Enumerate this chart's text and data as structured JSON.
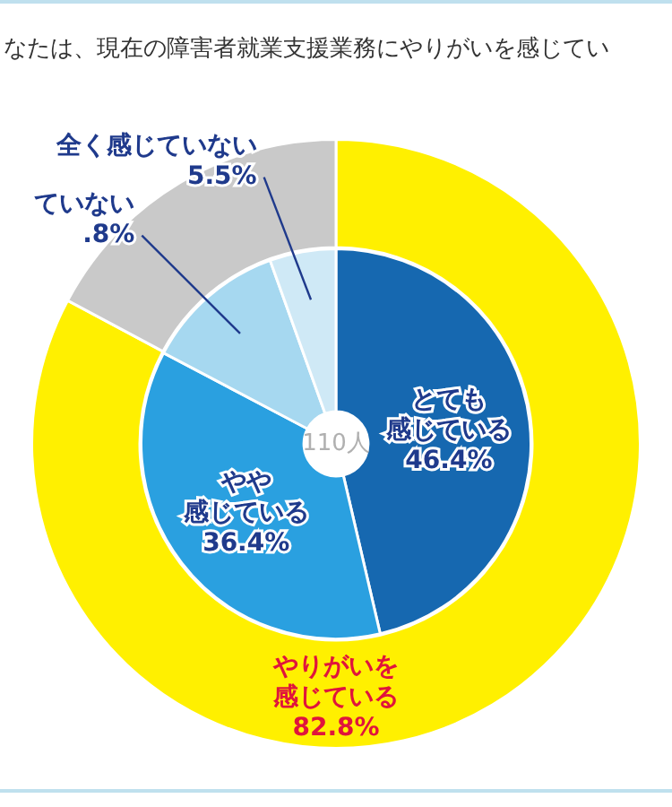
{
  "chart_data": [
    {
      "type": "donut",
      "title": "なたは、現在の障害者就業支援業務にやりがいを感じてい",
      "categories": [
        "やりがいを感じている",
        null
      ],
      "values": [
        82.8,
        17.2
      ],
      "colors": [
        "#fff000",
        "#c9c9c9"
      ],
      "value_labels": [
        "82.8%",
        null
      ]
    },
    {
      "type": "donut",
      "categories": [
        "とても感じている",
        "やや感じている",
        "ていない",
        "全く感じていない"
      ],
      "values": [
        46.4,
        36.4,
        11.8,
        5.5
      ],
      "colors": [
        "#1668b0",
        "#2aa0e0",
        "#a6d8f0",
        "#cfe9f6"
      ],
      "value_labels": [
        "46.4%",
        "36.4%",
        null,
        "5.5%"
      ],
      "annotations": [
        "110人",
        ".8%"
      ]
    }
  ]
}
